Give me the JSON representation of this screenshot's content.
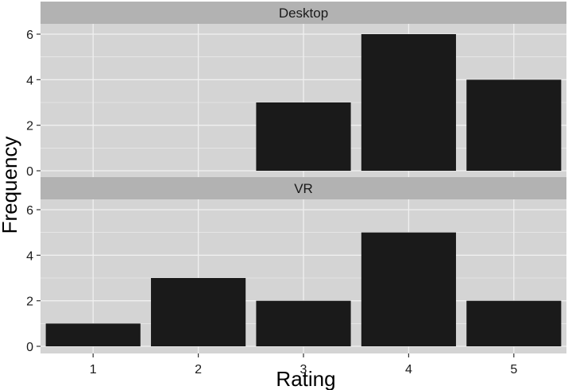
{
  "chart_data": {
    "type": "bar",
    "xlabel": "Rating",
    "ylabel": "Frequency",
    "categories": [
      "1",
      "2",
      "3",
      "4",
      "5"
    ],
    "ylim": [
      0,
      6
    ],
    "yticks": [
      0,
      2,
      4,
      6
    ],
    "grid": true,
    "facets": [
      {
        "label": "Desktop",
        "values": [
          0,
          0,
          3,
          6,
          4
        ]
      },
      {
        "label": "VR",
        "values": [
          1,
          3,
          2,
          5,
          2
        ]
      }
    ],
    "colors": {
      "bar": "#1a1a1a",
      "panel": "#d4d4d4",
      "strip": "#b2b2b2",
      "grid": "#f0f0f0"
    }
  }
}
